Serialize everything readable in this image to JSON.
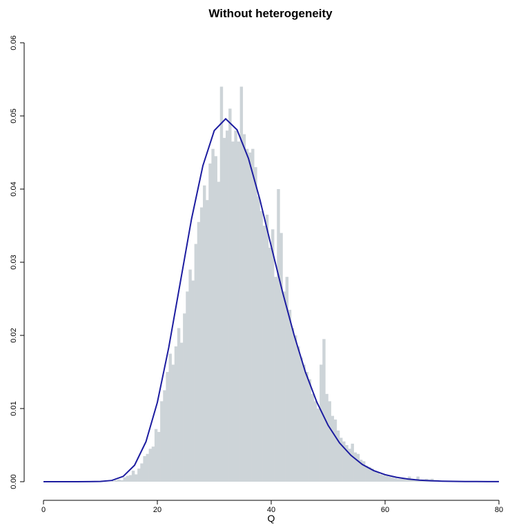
{
  "chart_data": {
    "type": "bar",
    "subtype": "histogram-with-density-curve",
    "title": "Without heterogeneity",
    "xlabel": "Q",
    "ylabel": "",
    "xlim": [
      0,
      80
    ],
    "ylim": [
      0,
      0.06
    ],
    "x_ticks": [
      "0",
      "20",
      "40",
      "60",
      "80"
    ],
    "y_ticks": [
      "0.00",
      "0.01",
      "0.02",
      "0.03",
      "0.04",
      "0.05",
      "0.06"
    ],
    "grid": false,
    "colors": {
      "bars": "#cdd4d8",
      "curve": "#1c1ca0"
    },
    "histogram": {
      "bin_start": 12,
      "bin_width": 0.5,
      "values": [
        0.0001,
        0.0002,
        0.0003,
        0.0002,
        0.0006,
        0.0008,
        0.0009,
        0.0015,
        0.001,
        0.0018,
        0.0025,
        0.0035,
        0.0038,
        0.0045,
        0.0048,
        0.0072,
        0.0068,
        0.011,
        0.0125,
        0.015,
        0.0175,
        0.016,
        0.0185,
        0.021,
        0.019,
        0.023,
        0.026,
        0.029,
        0.0275,
        0.0325,
        0.0355,
        0.0375,
        0.0405,
        0.0385,
        0.0435,
        0.0455,
        0.0445,
        0.041,
        0.054,
        0.047,
        0.048,
        0.051,
        0.0465,
        0.048,
        0.0465,
        0.054,
        0.0475,
        0.0455,
        0.045,
        0.0455,
        0.043,
        0.039,
        0.037,
        0.035,
        0.0365,
        0.032,
        0.0345,
        0.028,
        0.04,
        0.034,
        0.026,
        0.028,
        0.0235,
        0.021,
        0.02,
        0.0185,
        0.017,
        0.016,
        0.015,
        0.014,
        0.012,
        0.011,
        0.01,
        0.016,
        0.0195,
        0.012,
        0.011,
        0.009,
        0.0085,
        0.007,
        0.006,
        0.0055,
        0.005,
        0.0045,
        0.0052,
        0.004,
        0.0038,
        0.003,
        0.0028,
        0.0022,
        0.002,
        0.0018,
        0.0015,
        0.0013,
        0.001,
        0.0009,
        0.0008,
        0.0007,
        0.0006,
        0.0005,
        0.0004,
        0.0004,
        0.0005,
        0.0003,
        0.0007,
        0.0004,
        0.0002,
        0.0007,
        0.0002,
        0.0003,
        0.0004,
        0.0003,
        0.0004,
        0.0002
      ]
    },
    "curve": {
      "x": [
        0,
        2,
        4,
        6,
        8,
        10,
        12,
        14,
        16,
        18,
        20,
        22,
        24,
        26,
        28,
        30,
        32,
        34,
        36,
        38,
        40,
        42,
        44,
        46,
        48,
        50,
        52,
        54,
        56,
        58,
        60,
        62,
        64,
        66,
        68,
        70,
        72,
        74,
        76,
        78,
        80
      ],
      "y": [
        0,
        0,
        0,
        1e-06,
        8e-06,
        4e-05,
        0.000167,
        0.000723,
        0.00225,
        0.00546,
        0.01084,
        0.01833,
        0.0271,
        0.0359,
        0.0432,
        0.048,
        0.0496,
        0.0481,
        0.0442,
        0.0386,
        0.0322,
        0.0259,
        0.0201,
        0.015,
        0.0109,
        0.0077,
        0.0053,
        0.0036,
        0.00236,
        0.00152,
        0.00096,
        0.0006,
        0.00037,
        0.00022,
        0.00013,
        8e-05,
        5e-05,
        3e-05,
        2e-05,
        1e-05,
        5e-06
      ]
    }
  }
}
